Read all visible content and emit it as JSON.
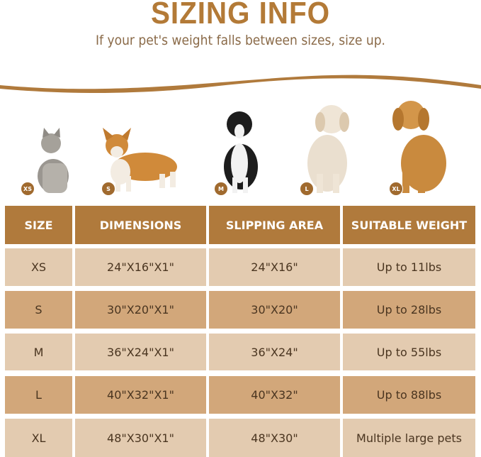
{
  "header": {
    "title": "SIZING INFO",
    "subtitle": "If your pet's weight falls between sizes, size up."
  },
  "colors": {
    "brand": "#b07a3c",
    "row_light": "#e3cbb0",
    "row_dark": "#d2a77a"
  },
  "pets": [
    {
      "badge": "XS",
      "animal": "cat-icon"
    },
    {
      "badge": "S",
      "animal": "corgi-icon"
    },
    {
      "badge": "M",
      "animal": "border-collie-icon"
    },
    {
      "badge": "L",
      "animal": "labrador-icon"
    },
    {
      "badge": "XL",
      "animal": "golden-retriever-icon"
    }
  ],
  "table": {
    "columns": [
      "SIZE",
      "DIMENSIONS",
      "SLIPPING AREA",
      "SUITABLE WEIGHT"
    ],
    "rows": [
      [
        "XS",
        "24\"X16\"X1\"",
        "24\"X16\"",
        "Up to 11lbs"
      ],
      [
        "S",
        "30\"X20\"X1\"",
        "30\"X20\"",
        "Up to 28lbs"
      ],
      [
        "M",
        "36\"X24\"X1\"",
        "36\"X24\"",
        "Up to 55lbs"
      ],
      [
        "L",
        "40\"X32\"X1\"",
        "40\"X32\"",
        "Up to 88lbs"
      ],
      [
        "XL",
        "48\"X30\"X1\"",
        "48\"X30\"",
        "Multiple large pets"
      ]
    ]
  }
}
